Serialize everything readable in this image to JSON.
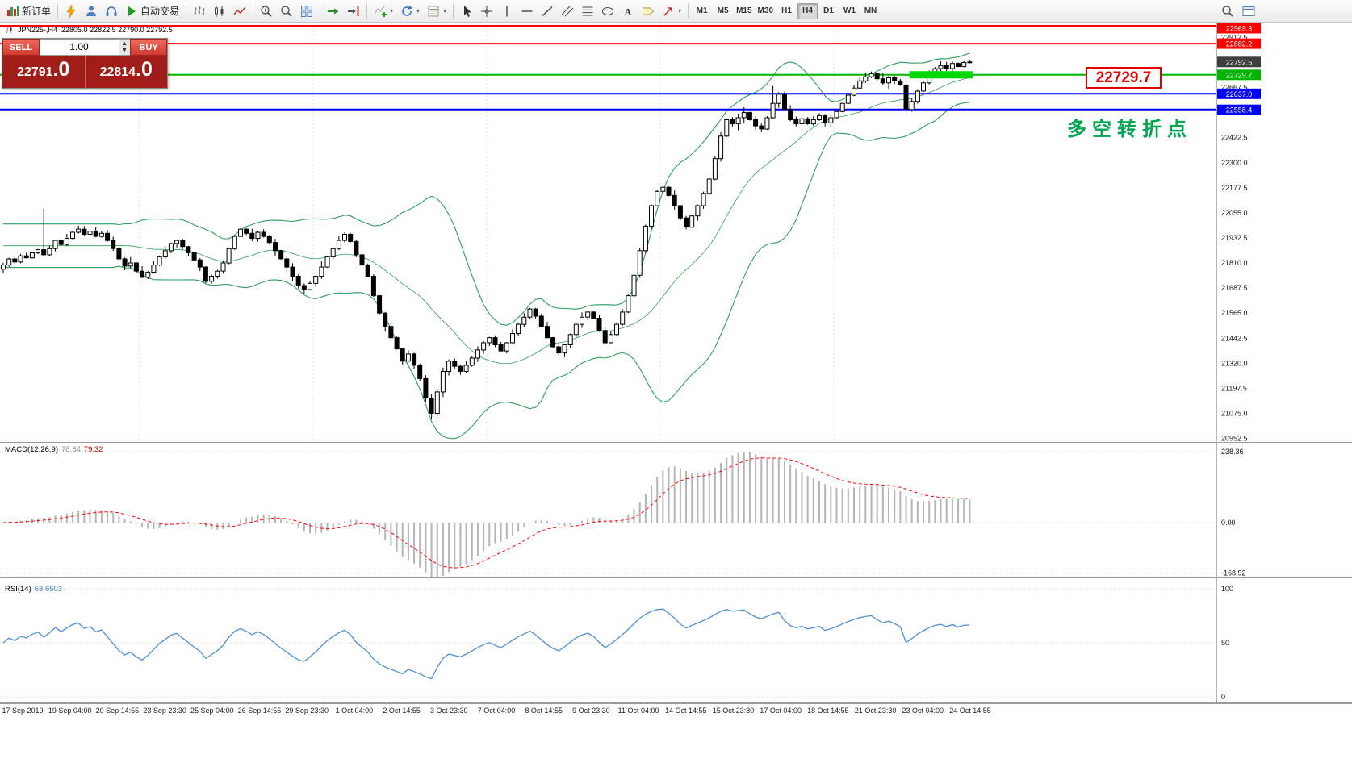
{
  "toolbar": {
    "groups": [
      {
        "name": "order",
        "items": [
          {
            "name": "new-order",
            "icon": "new-order",
            "label": "新订单"
          }
        ]
      },
      {
        "name": "services",
        "items": [
          {
            "name": "quick-trade",
            "icon": "lightning"
          },
          {
            "name": "community",
            "icon": "person"
          },
          {
            "name": "support",
            "icon": "headset"
          },
          {
            "name": "autotrading",
            "icon": "play-green",
            "label": "自动交易"
          }
        ]
      },
      {
        "name": "chart-types",
        "items": [
          {
            "name": "bars-chart",
            "icon": "bars-chart"
          },
          {
            "name": "candles-chart",
            "icon": "candles-chart"
          },
          {
            "name": "line-chart",
            "icon": "line-chart"
          }
        ]
      },
      {
        "name": "zoom",
        "items": [
          {
            "name": "zoom-in",
            "icon": "zoom-in"
          },
          {
            "name": "zoom-out",
            "icon": "zoom-out"
          },
          {
            "name": "tile-windows",
            "icon": "tile-windows"
          }
        ]
      },
      {
        "name": "scroll",
        "items": [
          {
            "name": "auto-scroll",
            "icon": "autoscroll"
          },
          {
            "name": "chart-shift",
            "icon": "shift-end"
          }
        ]
      },
      {
        "name": "objects",
        "items": [
          {
            "name": "indicators",
            "icon": "indicators",
            "caret": true
          },
          {
            "name": "periods",
            "icon": "cycle",
            "caret": true
          },
          {
            "name": "templates",
            "icon": "template",
            "caret": true
          }
        ]
      },
      {
        "name": "tools",
        "items": [
          {
            "name": "cursor",
            "icon": "cursor"
          },
          {
            "name": "crosshair",
            "icon": "crosshair"
          },
          {
            "name": "vertical-line",
            "icon": "vline"
          },
          {
            "name": "horizontal-line",
            "icon": "hline"
          },
          {
            "name": "trendline",
            "icon": "trendline"
          },
          {
            "name": "channel",
            "icon": "channel"
          },
          {
            "name": "fibonacci",
            "icon": "fibonacci"
          },
          {
            "name": "shapes",
            "icon": "shapes"
          },
          {
            "name": "text",
            "icon": "text-A"
          },
          {
            "name": "text-label",
            "icon": "label-icon"
          },
          {
            "name": "arrows",
            "icon": "arrows-tool",
            "caret": true
          }
        ]
      },
      {
        "name": "timeframes",
        "timeframes": [
          "M1",
          "M5",
          "M15",
          "M30",
          "H1",
          "H4",
          "D1",
          "W1",
          "MN"
        ],
        "active": "H4"
      }
    ],
    "right_items": [
      {
        "name": "search",
        "icon": "search"
      },
      {
        "name": "layout",
        "icon": "layout"
      }
    ]
  },
  "trade": {
    "sell_label": "SELL",
    "buy_label": "BUY",
    "lot": "1.00",
    "sell_price_main": "22791",
    "sell_price_frac": ".0",
    "buy_price_main": "22814",
    "buy_price_frac": ".0"
  },
  "chart": {
    "title": {
      "symbol": "JPN225-,H4",
      "ohlc": "22805.0 22822.5 22790.0 22792.5"
    },
    "big_label": {
      "text": "22729.7",
      "color": "#e60000"
    },
    "annotation": {
      "text": "多空转折点",
      "color": "#00a651"
    }
  },
  "indicators": {
    "macd": {
      "name": "MACD(12,26,9)",
      "v1": "78.64",
      "v2": "79.32",
      "scale_labels": [
        "238.36",
        "0.00",
        "-168.92"
      ],
      "scale_values": [
        238.36,
        0,
        -168.92
      ],
      "hist_color": "#b5b5b5",
      "signal_color": "#ff0000"
    },
    "rsi": {
      "name": "RSI(14)",
      "value": "63.6503",
      "levels": [
        100,
        50,
        0
      ],
      "color": "#4f8fd6"
    }
  },
  "chart_data": {
    "type": "candlestick",
    "symbol": "JPN225-",
    "timeframe": "H4",
    "open_first": 21780,
    "closes": [
      21800,
      21830,
      21815,
      21845,
      21835,
      21860,
      21875,
      21850,
      21880,
      21920,
      21900,
      21930,
      21960,
      21975,
      21950,
      21965,
      21940,
      21955,
      21920,
      21880,
      21830,
      21795,
      21810,
      21770,
      21740,
      21765,
      21800,
      21840,
      21870,
      21905,
      21920,
      21890,
      21860,
      21825,
      21790,
      21720,
      21745,
      21770,
      21810,
      21880,
      21940,
      21975,
      21955,
      21930,
      21960,
      21940,
      21910,
      21870,
      21830,
      21790,
      21745,
      21700,
      21680,
      21710,
      21745,
      21790,
      21840,
      21880,
      21920,
      21950,
      21915,
      21850,
      21800,
      21745,
      21650,
      21565,
      21500,
      21445,
      21390,
      21330,
      21365,
      21310,
      21245,
      21150,
      21075,
      21180,
      21280,
      21330,
      21305,
      21280,
      21310,
      21345,
      21385,
      21420,
      21445,
      21410,
      21380,
      21420,
      21465,
      21510,
      21545,
      21585,
      21550,
      21500,
      21445,
      21400,
      21370,
      21410,
      21460,
      21510,
      21545,
      21570,
      21540,
      21480,
      21420,
      21460,
      21510,
      21570,
      21650,
      21750,
      21870,
      21990,
      22090,
      22160,
      22180,
      22140,
      22090,
      22030,
      21985,
      22040,
      22090,
      22150,
      22220,
      22320,
      22430,
      22510,
      22490,
      22520,
      22545,
      22510,
      22480,
      22465,
      22520,
      22590,
      22635,
      22560,
      22510,
      22490,
      22515,
      22490,
      22510,
      22530,
      22495,
      22520,
      22550,
      22590,
      22630,
      22665,
      22700,
      22720,
      22735,
      22710,
      22690,
      22715,
      22700,
      22680,
      22560,
      22600,
      22650,
      22690,
      22730,
      22760,
      22775,
      22760,
      22785,
      22770,
      22790,
      22792.5
    ],
    "wick_overrides": {
      "7": {
        "high": 22075
      },
      "74": {
        "low": 21045
      },
      "133": {
        "high": 22675
      },
      "156": {
        "low": 22540
      }
    },
    "candle_colors": {
      "up_fill": "#ffffff",
      "down_fill": "#000000",
      "outline": "#000000"
    },
    "bollinger": {
      "period": 20,
      "deviation": 2,
      "color": "#2e9e5e"
    },
    "levels": [
      {
        "price": 22969.3,
        "label": "22969.3",
        "color": "#ff0000",
        "width": 2
      },
      {
        "price": 22882.2,
        "label": "22882.2",
        "color": "#ff0000",
        "width": 2
      },
      {
        "price": 22729.7,
        "label": "22729.7",
        "color": "#00b400",
        "width": 2
      },
      {
        "price": 22637.0,
        "label": "22637.0",
        "color": "#0000ff",
        "width": 2
      },
      {
        "price": 22558.4,
        "label": "22558.4",
        "color": "#0000ff",
        "width": 3
      }
    ],
    "highlight": {
      "from_index": 157,
      "to_index": 167,
      "price": 22729.7,
      "color": "#00d800",
      "width": 9
    },
    "current_price": {
      "value": 22792.5,
      "label": "22792.5",
      "bg": "#3f3f3f"
    },
    "y_axis": {
      "min": 20935,
      "max": 22985
    },
    "price_ticks": [
      "22912.5",
      "22790.0",
      "22667.5",
      "22545.0",
      "22422.5",
      "22300.0",
      "22177.5",
      "22055.0",
      "21932.5",
      "21810.0",
      "21687.5",
      "21565.0",
      "21442.5",
      "21320.0",
      "21197.5",
      "21075.0",
      "20952.5"
    ],
    "week_separator_indices": [
      24,
      54,
      84,
      114,
      144
    ],
    "x_labels": [
      "17 Sep 2019",
      "19 Sep 04:00",
      "20 Sep 14:55",
      "23 Sep 23:30",
      "25 Sep 04:00",
      "26 Sep 14:55",
      "29 Sep 23:30",
      "1 Oct 04:00",
      "2 Oct 14:55",
      "3 Oct 23:30",
      "7 Oct 04:00",
      "8 Oct 14:55",
      "9 Oct 23:30",
      "11 Oct 04:00",
      "14 Oct 14:55",
      "15 Oct 23:30",
      "17 Oct 04:00",
      "18 Oct 14:55",
      "21 Oct 23:30",
      "23 Oct 04:00",
      "24 Oct 14:55"
    ]
  }
}
